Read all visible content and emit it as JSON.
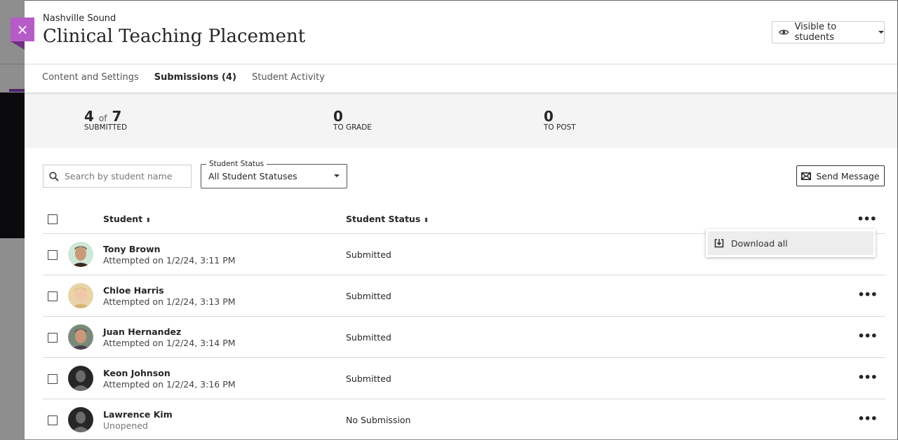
{
  "header": {
    "course": "Nashville Sound",
    "title": "Clinical Teaching Placement",
    "visibility_label": "Visible to students",
    "close_icon": "×"
  },
  "tabs": [
    {
      "label": "Content and Settings"
    },
    {
      "label": "Submissions (4)"
    },
    {
      "label": "Student Activity"
    }
  ],
  "stats": {
    "submitted": {
      "value": "4",
      "of": "of",
      "total": "7",
      "label": "SUBMITTED"
    },
    "to_grade": {
      "value": "0",
      "label": "TO GRADE"
    },
    "to_post": {
      "value": "0",
      "label": "TO POST"
    }
  },
  "filters": {
    "search_placeholder": "Search by student name",
    "status_label": "Student Status",
    "status_value": "All Student Statuses"
  },
  "send_message_label": "Send Message",
  "table": {
    "col_student": "Student",
    "col_status": "Student Status",
    "sort_icon": "⬍",
    "rows": [
      {
        "name": "Tony Brown",
        "detail": "Attempted on 1/2/24, 3:11 PM",
        "status": "Submitted",
        "avatar": "photo"
      },
      {
        "name": "Chloe Harris",
        "detail": "Attempted on 1/2/24, 3:13 PM",
        "status": "Submitted",
        "avatar": "photo"
      },
      {
        "name": "Juan Hernandez",
        "detail": "Attempted on 1/2/24, 3:14 PM",
        "status": "Submitted",
        "avatar": "photo"
      },
      {
        "name": "Keon Johnson",
        "detail": "Attempted on 1/2/24, 3:16 PM",
        "status": "Submitted",
        "avatar": "placeholder"
      },
      {
        "name": "Lawrence Kim",
        "detail": "Unopened",
        "status": "No Submission",
        "avatar": "placeholder"
      }
    ]
  },
  "menu": {
    "download_all": "Download all"
  },
  "colors": {
    "accent": "#8b3ab8",
    "close_bg": "#b65cc8"
  }
}
